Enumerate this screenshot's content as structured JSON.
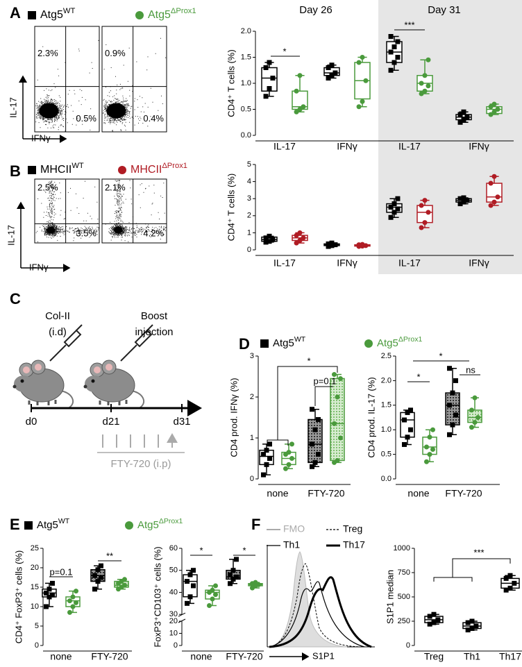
{
  "panel_labels": [
    "A",
    "B",
    "C",
    "D",
    "E",
    "F"
  ],
  "diagram": {
    "steps": [
      {
        "lines": [
          "Col-II",
          "(i.d)"
        ]
      },
      {
        "lines": [
          "Boost",
          "injection"
        ]
      }
    ],
    "days": [
      "d0",
      "d21",
      "d31"
    ],
    "treatment": "FTY-720 (i.p)"
  },
  "flow_panels": [
    {
      "y_label": "IL-17",
      "x_label": "IFNγ",
      "plots": [
        {
          "ul": "2.3%",
          "lr": "0.5%"
        },
        {
          "ul": "0.9%",
          "lr": "0.4%"
        }
      ]
    },
    {
      "y_label": "IL-17",
      "x_label": "IFNγ",
      "plots": [
        {
          "ul": "2.5%",
          "lr": "3.5%"
        },
        {
          "ul": "2.1%",
          "lr": "4.2%"
        }
      ]
    }
  ],
  "histogram": {
    "legend": [
      "FMO",
      "Treg",
      "Th1",
      "Th17"
    ],
    "x_label": "S1P1"
  },
  "chart_data": [
    {
      "type": "box",
      "ylabel": "CD4⁺ T cells (%)",
      "ylim": [
        0,
        2
      ],
      "yticks": [
        {
          "value": 0,
          "label": "0.0"
        },
        {
          "value": 0.5,
          "label": "0.5"
        },
        {
          "value": 1,
          "label": "1.0"
        },
        {
          "value": 1.5,
          "label": "1.5"
        },
        {
          "value": 2,
          "label": "2.0"
        }
      ],
      "categories": [
        "IL-17",
        "IFNγ",
        "IL-17",
        "IFNγ"
      ],
      "group_headers": [
        "Day 26",
        "Day 31"
      ],
      "shaded_categories": [
        2,
        3
      ],
      "annotations": [
        "*",
        "***"
      ],
      "series": [
        {
          "name": "Atg5",
          "name_sup": "WT",
          "color": "#000000",
          "marker": "square",
          "boxes": [
            {
              "min": 0.75,
              "q1": 0.85,
              "median": 1.1,
              "q3": 1.3,
              "max": 1.4,
              "points": [
                0.75,
                0.9,
                1.1,
                1.3,
                1.4
              ]
            },
            {
              "min": 1.1,
              "q1": 1.15,
              "median": 1.2,
              "q3": 1.3,
              "max": 1.35,
              "points": [
                1.1,
                1.15,
                1.2,
                1.3,
                1.35
              ]
            },
            {
              "min": 1.25,
              "q1": 1.4,
              "median": 1.6,
              "q3": 1.8,
              "max": 1.9,
              "points": [
                1.25,
                1.4,
                1.5,
                1.6,
                1.7,
                1.8,
                1.9
              ]
            },
            {
              "min": 0.25,
              "q1": 0.3,
              "median": 0.35,
              "q3": 0.4,
              "max": 0.45,
              "points": [
                0.25,
                0.3,
                0.35,
                0.4,
                0.45
              ]
            }
          ]
        },
        {
          "name": "Atg5",
          "name_sup": "ΔProx1",
          "color": "#4a9a3c",
          "marker": "circle",
          "boxes": [
            {
              "min": 0.45,
              "q1": 0.5,
              "median": 0.55,
              "q3": 0.85,
              "max": 1.15,
              "points": [
                0.45,
                0.5,
                0.55,
                0.85,
                1.15
              ]
            },
            {
              "min": 0.55,
              "q1": 0.7,
              "median": 1.05,
              "q3": 1.4,
              "max": 1.5,
              "points": [
                0.55,
                0.65,
                1.05,
                1.4,
                1.5
              ]
            },
            {
              "min": 0.8,
              "q1": 0.85,
              "median": 1.0,
              "q3": 1.15,
              "max": 1.45,
              "points": [
                0.8,
                0.85,
                0.95,
                1.0,
                1.15,
                1.45
              ]
            },
            {
              "min": 0.4,
              "q1": 0.42,
              "median": 0.5,
              "q3": 0.55,
              "max": 0.6,
              "points": [
                0.4,
                0.45,
                0.5,
                0.55,
                0.6
              ]
            }
          ]
        }
      ]
    },
    {
      "type": "box",
      "ylabel": "CD4⁺ T cells (%)",
      "ylim": [
        0,
        5
      ],
      "yticks": [
        0,
        1,
        2,
        3,
        4,
        5
      ],
      "categories": [
        "IL-17",
        "IFNγ",
        "IL-17",
        "IFNγ"
      ],
      "shaded_categories": [
        2,
        3
      ],
      "series": [
        {
          "name": "MHCII",
          "name_sup": "WT",
          "color": "#000000",
          "marker": "square",
          "boxes": [
            {
              "min": 0.45,
              "q1": 0.5,
              "median": 0.6,
              "q3": 0.75,
              "max": 0.8,
              "points": [
                0.45,
                0.5,
                0.6,
                0.7,
                0.8
              ]
            },
            {
              "min": 0.2,
              "q1": 0.25,
              "median": 0.3,
              "q3": 0.35,
              "max": 0.4,
              "points": [
                0.2,
                0.25,
                0.3,
                0.35,
                0.4
              ]
            },
            {
              "min": 1.9,
              "q1": 2.2,
              "median": 2.5,
              "q3": 2.7,
              "max": 3.0,
              "points": [
                1.9,
                2.2,
                2.4,
                2.5,
                2.7,
                3.0
              ]
            },
            {
              "min": 2.7,
              "q1": 2.8,
              "median": 2.9,
              "q3": 3.0,
              "max": 3.05,
              "points": [
                2.7,
                2.8,
                2.9,
                3.0,
                3.05
              ]
            }
          ]
        },
        {
          "name": "MHCII",
          "name_sup": "ΔProx1",
          "color": "#b01c24",
          "marker": "circle",
          "boxes": [
            {
              "min": 0.4,
              "q1": 0.55,
              "median": 0.7,
              "q3": 0.85,
              "max": 1.0,
              "points": [
                0.4,
                0.55,
                0.7,
                0.85,
                1.0
              ]
            },
            {
              "min": 0.2,
              "q1": 0.22,
              "median": 0.25,
              "q3": 0.3,
              "max": 0.32,
              "points": [
                0.2,
                0.22,
                0.25,
                0.3,
                0.32
              ]
            },
            {
              "min": 1.3,
              "q1": 1.6,
              "median": 2.2,
              "q3": 2.6,
              "max": 2.9,
              "points": [
                1.3,
                1.6,
                2.2,
                2.6,
                2.9
              ]
            },
            {
              "min": 2.6,
              "q1": 2.8,
              "median": 3.1,
              "q3": 3.9,
              "max": 4.3,
              "points": [
                2.6,
                2.8,
                3.1,
                3.9,
                4.3
              ]
            }
          ]
        }
      ]
    },
    {
      "type": "box",
      "ylabel": "CD4 prod. IFNγ (%)",
      "ylim": [
        0,
        3
      ],
      "yticks": [
        0,
        1,
        2,
        3
      ],
      "categories": [
        "none",
        "FTY-720"
      ],
      "textured": [
        false,
        true
      ],
      "annotations": [
        "*",
        "p=0.1"
      ],
      "series": [
        {
          "name": "Atg5",
          "name_sup": "WT",
          "color": "#000000",
          "marker": "square",
          "boxes": [
            {
              "min": 0.1,
              "q1": 0.35,
              "median": 0.55,
              "q3": 0.7,
              "max": 0.85,
              "points": [
                0.1,
                0.35,
                0.5,
                0.6,
                0.7,
                0.85
              ]
            },
            {
              "min": 0.3,
              "q1": 0.4,
              "median": 0.85,
              "q3": 1.45,
              "max": 1.7,
              "points": [
                0.3,
                0.4,
                0.6,
                0.85,
                1.2,
                1.45,
                1.7
              ]
            }
          ]
        },
        {
          "name": "Atg5",
          "name_sup": "ΔProx1",
          "color": "#4a9a3c",
          "marker": "circle",
          "boxes": [
            {
              "min": 0.25,
              "q1": 0.35,
              "median": 0.5,
              "q3": 0.65,
              "max": 0.85,
              "points": [
                0.25,
                0.35,
                0.5,
                0.6,
                0.65,
                0.85
              ]
            },
            {
              "min": 0.4,
              "q1": 0.45,
              "median": 1.35,
              "q3": 2.45,
              "max": 2.55,
              "points": [
                0.4,
                0.45,
                1.0,
                1.35,
                2.0,
                2.45,
                2.55
              ]
            }
          ]
        }
      ]
    },
    {
      "type": "box",
      "ylabel": "CD4 prod. IL-17 (%)",
      "ylim": [
        0,
        2.5
      ],
      "yticks": [
        {
          "value": 0,
          "label": "0.0"
        },
        {
          "value": 0.5,
          "label": "0.5"
        },
        {
          "value": 1,
          "label": "1.0"
        },
        {
          "value": 1.5,
          "label": "1.5"
        },
        {
          "value": 2,
          "label": "2.0"
        },
        {
          "value": 2.5,
          "label": "2.5"
        }
      ],
      "categories": [
        "none",
        "FTY-720"
      ],
      "textured": [
        false,
        true
      ],
      "annotations": [
        "*",
        "*",
        "ns"
      ],
      "series": [
        {
          "color": "#000000",
          "marker": "square",
          "boxes": [
            {
              "min": 0.7,
              "q1": 0.85,
              "median": 1.2,
              "q3": 1.35,
              "max": 1.4,
              "points": [
                0.7,
                0.85,
                1.0,
                1.2,
                1.35,
                1.4
              ]
            },
            {
              "min": 0.9,
              "q1": 1.1,
              "median": 1.5,
              "q3": 1.75,
              "max": 2.25,
              "points": [
                0.9,
                1.1,
                1.3,
                1.5,
                1.75,
                2.0,
                2.25
              ]
            }
          ]
        },
        {
          "color": "#4a9a3c",
          "marker": "circle",
          "boxes": [
            {
              "min": 0.35,
              "q1": 0.5,
              "median": 0.65,
              "q3": 0.85,
              "max": 1.0,
              "points": [
                0.35,
                0.5,
                0.6,
                0.65,
                0.85,
                1.0
              ]
            },
            {
              "min": 1.05,
              "q1": 1.15,
              "median": 1.25,
              "q3": 1.4,
              "max": 1.65,
              "points": [
                1.05,
                1.15,
                1.25,
                1.4,
                1.65
              ]
            }
          ]
        }
      ]
    },
    {
      "type": "box",
      "ylabel": "CD4⁺ FoxP3⁺ cells (%)",
      "ylim": [
        0,
        25
      ],
      "yticks": [
        0,
        5,
        10,
        15,
        20,
        25
      ],
      "categories": [
        "none",
        "FTY-720"
      ],
      "textured": [
        false,
        true
      ],
      "annotations": [
        "p=0.1",
        "**"
      ],
      "series": [
        {
          "name": "Atg5",
          "name_sup": "WT",
          "color": "#000000",
          "marker": "square",
          "boxes": [
            {
              "min": 10,
              "q1": 12.5,
              "median": 13.5,
              "q3": 14.5,
              "max": 16,
              "points": [
                10,
                12.5,
                13,
                13.5,
                14.5,
                16
              ]
            },
            {
              "min": 14.5,
              "q1": 16.5,
              "median": 18,
              "q3": 19.5,
              "max": 20.5,
              "points": [
                14.5,
                16.5,
                17.5,
                18,
                19.5,
                20.5
              ]
            }
          ]
        },
        {
          "name": "Atg5",
          "name_sup": "ΔProx1",
          "color": "#4a9a3c",
          "marker": "circle",
          "boxes": [
            {
              "min": 8.5,
              "q1": 10,
              "median": 11.5,
              "q3": 12.5,
              "max": 14,
              "points": [
                8.5,
                10,
                11,
                11.5,
                12.5,
                14
              ]
            },
            {
              "min": 14.5,
              "q1": 15,
              "median": 15.5,
              "q3": 16.5,
              "max": 17,
              "points": [
                14.5,
                15,
                15.5,
                16,
                16.5,
                17
              ]
            }
          ]
        }
      ]
    },
    {
      "type": "box",
      "ylabel": "FoxP3⁺CD103⁺ cells (%)",
      "ylim": [
        0,
        60
      ],
      "yticks": [
        0,
        10,
        20,
        30,
        40,
        50,
        60
      ],
      "axis_break": [
        20,
        30
      ],
      "categories": [
        "none",
        "FTY-720"
      ],
      "textured": [
        false,
        true
      ],
      "annotations": [
        "*",
        "*"
      ],
      "series": [
        {
          "color": "#000000",
          "marker": "square",
          "boxes": [
            {
              "min": 35,
              "q1": 38,
              "median": 45,
              "q3": 48,
              "max": 50,
              "points": [
                35,
                38,
                43,
                45,
                48,
                50
              ]
            },
            {
              "min": 44,
              "q1": 46,
              "median": 47,
              "q3": 50,
              "max": 55,
              "points": [
                44,
                46,
                47,
                48,
                50,
                55
              ]
            }
          ]
        },
        {
          "color": "#4a9a3c",
          "marker": "circle",
          "boxes": [
            {
              "min": 34,
              "q1": 37,
              "median": 40,
              "q3": 41,
              "max": 43,
              "points": [
                34,
                37,
                39,
                40,
                41,
                43
              ]
            },
            {
              "min": 42,
              "q1": 43,
              "median": 43.5,
              "q3": 44,
              "max": 44.5,
              "points": [
                42,
                43,
                43.5,
                44,
                44.5
              ]
            }
          ]
        }
      ]
    },
    {
      "type": "box",
      "ylabel": "S1P1 median",
      "ylim": [
        0,
        1000
      ],
      "yticks": [
        0,
        250,
        500,
        750,
        1000
      ],
      "categories": [
        "Treg",
        "Th1",
        "Th17"
      ],
      "annotations": [
        "***"
      ],
      "series": [
        {
          "color": "#000000",
          "marker": "square",
          "boxes": [
            {
              "min": 220,
              "q1": 235,
              "median": 265,
              "q3": 300,
              "max": 320,
              "points": [
                220,
                235,
                265,
                300,
                320
              ]
            },
            {
              "min": 160,
              "q1": 175,
              "median": 200,
              "q3": 235,
              "max": 250,
              "points": [
                160,
                175,
                200,
                235,
                250
              ]
            },
            {
              "min": 570,
              "q1": 590,
              "median": 640,
              "q3": 690,
              "max": 720,
              "points": [
                570,
                590,
                640,
                690,
                720
              ]
            }
          ]
        }
      ]
    }
  ]
}
